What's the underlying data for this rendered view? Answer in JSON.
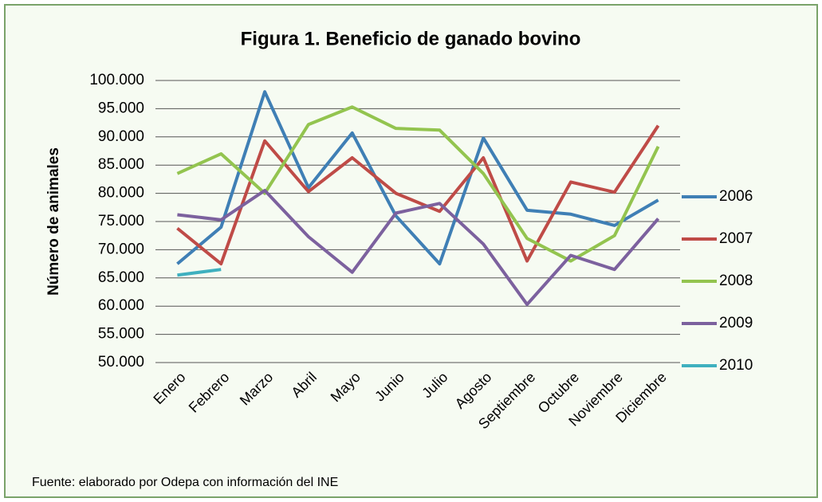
{
  "chart_data": {
    "type": "line",
    "title": "Figura 1. Beneficio  de ganado bovino",
    "y_label": "Número de animales",
    "source": "Fuente: elaborado por Odepa con información del INE",
    "categories": [
      "Enero",
      "Febrero",
      "Marzo",
      "Abril",
      "Mayo",
      "Junio",
      "Julio",
      "Agosto",
      "Septiembre",
      "Octubre",
      "Noviembre",
      "Diciembre"
    ],
    "series": [
      {
        "name": "2006",
        "color": "#3f7fb5",
        "values": [
          67500,
          74000,
          98000,
          81000,
          90700,
          76000,
          67500,
          89800,
          77000,
          76300,
          74300,
          78800
        ]
      },
      {
        "name": "2007",
        "color": "#bf4b47",
        "values": [
          73800,
          67500,
          89300,
          80300,
          86300,
          80000,
          76800,
          86300,
          68000,
          82000,
          80200,
          92000
        ]
      },
      {
        "name": "2008",
        "color": "#93c44f",
        "values": [
          83500,
          87000,
          80000,
          92200,
          95300,
          91500,
          91200,
          83500,
          72000,
          68000,
          72500,
          88300
        ]
      },
      {
        "name": "2009",
        "color": "#7c619e",
        "values": [
          76200,
          75300,
          80500,
          72300,
          66000,
          76500,
          78200,
          71000,
          60300,
          69000,
          66500,
          75500
        ]
      },
      {
        "name": "2010",
        "color": "#3fb0bf",
        "values": [
          65500,
          66500,
          null,
          null,
          null,
          null,
          null,
          null,
          null,
          null,
          null,
          null
        ]
      }
    ],
    "ylim": [
      50000,
      100000
    ],
    "yticks": [
      {
        "value": 50000,
        "label": "50.000"
      },
      {
        "value": 55000,
        "label": "55.000"
      },
      {
        "value": 60000,
        "label": "60.000"
      },
      {
        "value": 65000,
        "label": "65.000"
      },
      {
        "value": 70000,
        "label": "70.000"
      },
      {
        "value": 75000,
        "label": "75.000"
      },
      {
        "value": 80000,
        "label": "80.000"
      },
      {
        "value": 85000,
        "label": "85.000"
      },
      {
        "value": 90000,
        "label": "90.000"
      },
      {
        "value": 95000,
        "label": "95.000"
      },
      {
        "value": 100000,
        "label": "100.000"
      }
    ],
    "grid": true,
    "legend": "right"
  }
}
